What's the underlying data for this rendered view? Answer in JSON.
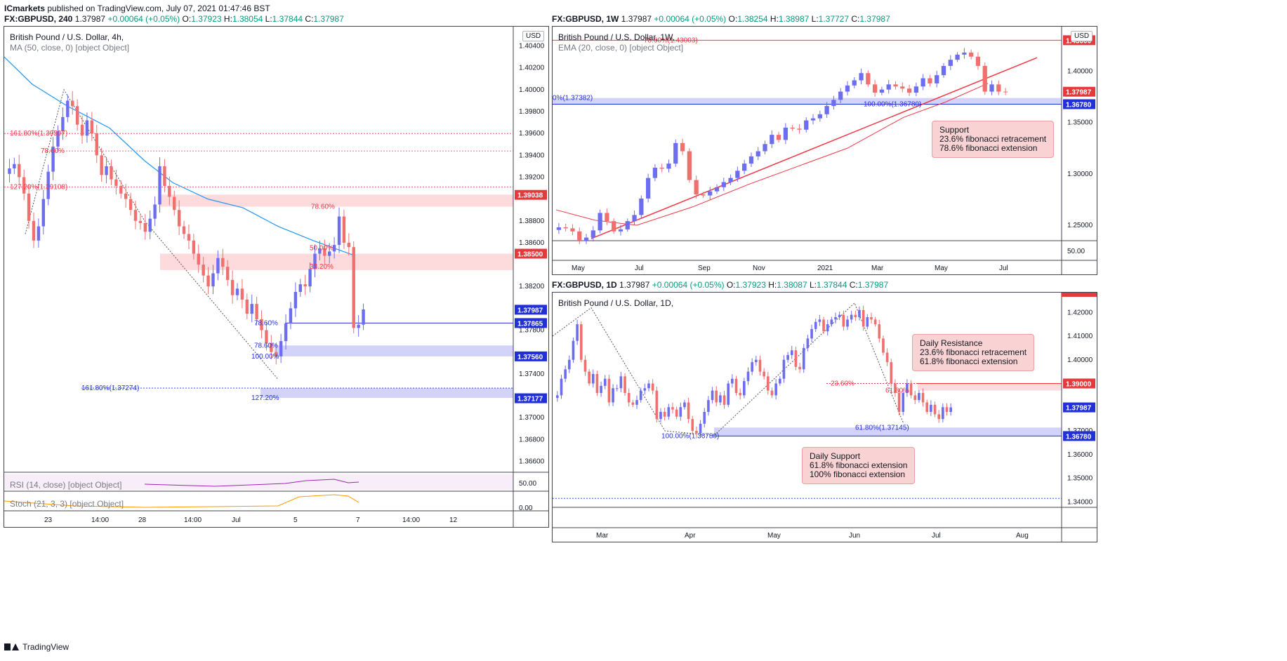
{
  "header": {
    "publisher": "ICmarkets",
    "published_text": "published on TradingView.com, July 07, 2021 01:47:46 BST"
  },
  "footer": {
    "brand": "TradingView"
  },
  "colors": {
    "up": "#6d6df0",
    "down": "#f07070",
    "ma": "#2196f3",
    "ema": "#f23645",
    "support": "#2962ff",
    "resistance": "#f23645"
  },
  "charts": [
    {
      "id": "h4",
      "symbol_line": {
        "symbol": "FX:GBPUSD, 240",
        "last": "1.37987",
        "change": "+0.00064 (+0.05%)",
        "o": "1.37923",
        "h": "1.38054",
        "l": "1.37844",
        "c": "1.37987"
      },
      "title": "British Pound / U.S. Dollar, 4h,",
      "indicator": "MA (50, close, 0) [object Object]",
      "currency_badge": "USD",
      "y_ticks": [
        "1.40400",
        "1.40200",
        "1.40000",
        "1.39800",
        "1.39600",
        "1.39400",
        "1.39200",
        "1.38800",
        "1.38600",
        "1.38200",
        "1.37800",
        "1.37400",
        "1.37000",
        "1.36800",
        "1.36600"
      ],
      "x_ticks": [
        "23",
        "14:00",
        "28",
        "14:00",
        "Jul",
        "5",
        "7",
        "14:00",
        "12"
      ],
      "price_tags": [
        {
          "label": "1.39038",
          "color": "#e33b3b"
        },
        {
          "label": "1.38500",
          "color": "#e33b3b"
        },
        {
          "label": "1.37987",
          "color": "#2230d8"
        },
        {
          "label": "1.37865",
          "color": "#2230d8"
        },
        {
          "label": "1.37560",
          "color": "#2230d8"
        },
        {
          "label": "1.37177",
          "color": "#2230d8"
        }
      ],
      "fib_labels": [
        {
          "text": "161.80%(1.39597)",
          "color": "#f23645"
        },
        {
          "text": "78.60%",
          "color": "#f23645"
        },
        {
          "text": "127.20%(1.39108)",
          "color": "#f23645"
        },
        {
          "text": "78.60%",
          "color": "#f23645"
        },
        {
          "text": "50.00%",
          "color": "#f23645"
        },
        {
          "text": "38.20%",
          "color": "#f23645"
        },
        {
          "text": "78.60%",
          "color": "#2230d8"
        },
        {
          "text": "78.60%",
          "color": "#2230d8"
        },
        {
          "text": "100.00%",
          "color": "#2230d8"
        },
        {
          "text": "161.80%(1.37274)",
          "color": "#2230d8"
        },
        {
          "text": "127.20%",
          "color": "#2230d8"
        }
      ],
      "rsi": {
        "label": "RSI (14, close) [object Object]",
        "tick": "50.00"
      },
      "stoch": {
        "label": "Stoch (21, 3, 3) [object Object]",
        "tick": "0.00"
      }
    },
    {
      "id": "w1",
      "symbol_line": {
        "symbol": "FX:GBPUSD, 1W",
        "last": "1.37987",
        "change": "+0.00064 (+0.05%)",
        "o": "1.38254",
        "h": "1.38987",
        "l": "1.37727",
        "c": "1.37987"
      },
      "title": "British Pound / U.S. Dollar, 1W,",
      "indicator": "EMA (20, close, 0) [object Object]",
      "currency_badge": "USD",
      "y_ticks": [
        "1.40000",
        "1.35000",
        "1.30000",
        "1.25000",
        "50.00"
      ],
      "x_ticks": [
        "May",
        "Jul",
        "Sep",
        "Nov",
        "2021",
        "Mar",
        "May",
        "Jul"
      ],
      "price_tags": [
        {
          "label": "1.43000",
          "color": "#e33b3b"
        },
        {
          "label": "1.37987",
          "color": "#e33b3b"
        },
        {
          "label": "1.36780",
          "color": "#2230d8"
        }
      ],
      "fib_labels": [
        {
          "text": "78.60%(1.43003)",
          "color": "#f23645"
        },
        {
          "text": "0%(1.37382)",
          "color": "#2230d8"
        },
        {
          "text": "100.00%(1.36780)",
          "color": "#2230d8"
        }
      ],
      "callout": [
        "Support",
        "23.6% fibonacci retracement",
        "78.6% fibonacci extension"
      ]
    },
    {
      "id": "d1",
      "symbol_line": {
        "symbol": "FX:GBPUSD, 1D",
        "last": "1.37987",
        "change": "+0.00064 (+0.05%)",
        "o": "1.37923",
        "h": "1.38087",
        "l": "1.37844",
        "c": "1.37987"
      },
      "title": "British Pound / U.S. Dollar, 1D,",
      "y_ticks": [
        "1.42000",
        "1.41000",
        "1.40000",
        "1.37000",
        "1.36000",
        "1.35000",
        "1.34000"
      ],
      "x_ticks": [
        "Mar",
        "Apr",
        "May",
        "Jun",
        "Jul",
        "Aug"
      ],
      "price_tags": [
        {
          "label": "1.39000",
          "color": "#e33b3b"
        },
        {
          "label": "1.37987",
          "color": "#2230d8"
        },
        {
          "label": "1.36780",
          "color": "#2230d8"
        }
      ],
      "fib_labels": [
        {
          "text": "23.60%",
          "color": "#f23645"
        },
        {
          "text": "61.80%",
          "color": "#f23645"
        },
        {
          "text": "61.80%(1.37145)",
          "color": "#2230d8"
        },
        {
          "text": "100.00%(1.36780)",
          "color": "#2230d8"
        }
      ],
      "callout_resistance": [
        "Daily Resistance",
        "23.6% fibonacci retracement",
        "61.8% fibonacci extension"
      ],
      "callout_support": [
        "Daily Support",
        "61.8% fibonacci extension",
        "100% fibonacci extension"
      ]
    }
  ],
  "chart_data": [
    {
      "type": "candlestick",
      "title": "British Pound / U.S. Dollar, 4h,",
      "ylim": [
        1.365,
        1.405
      ],
      "zones": [
        {
          "name": "resistance",
          "from": 1.3893,
          "to": 1.3904
        },
        {
          "name": "resistance",
          "from": 1.3835,
          "to": 1.385
        },
        {
          "name": "support",
          "from": 1.3756,
          "to": 1.3766
        },
        {
          "name": "support",
          "from": 1.3718,
          "to": 1.3727
        }
      ],
      "closes": [
        1.3928,
        1.3932,
        1.392,
        1.3905,
        1.388,
        1.3862,
        1.3875,
        1.39,
        1.3925,
        1.3948,
        1.3962,
        1.3975,
        1.399,
        1.3985,
        1.3968,
        1.3958,
        1.3972,
        1.396,
        1.394,
        1.3922,
        1.393,
        1.3918,
        1.3912,
        1.3905,
        1.39,
        1.389,
        1.388,
        1.3878,
        1.387,
        1.3882,
        1.3895,
        1.393,
        1.3912,
        1.3902,
        1.389,
        1.3875,
        1.3868,
        1.3862,
        1.385,
        1.384,
        1.383,
        1.382,
        1.3832,
        1.3846,
        1.3838,
        1.3826,
        1.3812,
        1.3818,
        1.3808,
        1.3795,
        1.3804,
        1.379,
        1.378,
        1.3768,
        1.376,
        1.3756,
        1.377,
        1.3786,
        1.38,
        1.3815,
        1.3822,
        1.382,
        1.3836,
        1.385,
        1.3855,
        1.3848,
        1.3852,
        1.3858,
        1.3884,
        1.386,
        1.3856,
        1.3782,
        1.3785,
        1.3799
      ]
    },
    {
      "type": "candlestick",
      "title": "British Pound / U.S. Dollar, 1W,",
      "ylim": [
        1.235,
        1.435
      ],
      "zones": [
        {
          "name": "support",
          "from": 1.3678,
          "to": 1.3738
        }
      ],
      "closes": [
        1.248,
        1.247,
        1.244,
        1.235,
        1.238,
        1.245,
        1.262,
        1.254,
        1.244,
        1.246,
        1.254,
        1.26,
        1.276,
        1.296,
        1.306,
        1.305,
        1.31,
        1.33,
        1.322,
        1.294,
        1.28,
        1.279,
        1.283,
        1.287,
        1.292,
        1.296,
        1.303,
        1.31,
        1.317,
        1.322,
        1.329,
        1.338,
        1.333,
        1.345,
        1.344,
        1.343,
        1.352,
        1.354,
        1.358,
        1.366,
        1.372,
        1.38,
        1.386,
        1.391,
        1.398,
        1.387,
        1.379,
        1.382,
        1.387,
        1.385,
        1.383,
        1.379,
        1.385,
        1.393,
        1.388,
        1.396,
        1.405,
        1.411,
        1.416,
        1.418,
        1.414,
        1.405,
        1.38,
        1.387,
        1.38,
        1.3799
      ]
    },
    {
      "type": "candlestick",
      "title": "British Pound / U.S. Dollar, 1D,",
      "ylim": [
        1.338,
        1.426
      ],
      "zones": [
        {
          "name": "resistance",
          "from": 1.387,
          "to": 1.39
        },
        {
          "name": "support",
          "from": 1.3678,
          "to": 1.3714
        }
      ],
      "closes": [
        1.385,
        1.392,
        1.396,
        1.4,
        1.408,
        1.415,
        1.4,
        1.395,
        1.39,
        1.394,
        1.386,
        1.389,
        1.392,
        1.382,
        1.388,
        1.388,
        1.393,
        1.386,
        1.382,
        1.381,
        1.383,
        1.387,
        1.388,
        1.39,
        1.387,
        1.375,
        1.378,
        1.376,
        1.38,
        1.379,
        1.376,
        1.38,
        1.382,
        1.375,
        1.37,
        1.369,
        1.373,
        1.378,
        1.383,
        1.387,
        1.382,
        1.385,
        1.381,
        1.39,
        1.392,
        1.386,
        1.385,
        1.391,
        1.395,
        1.399,
        1.4,
        1.395,
        1.393,
        1.387,
        1.385,
        1.39,
        1.392,
        1.4,
        1.402,
        1.404,
        1.397,
        1.396,
        1.405,
        1.409,
        1.413,
        1.416,
        1.417,
        1.412,
        1.415,
        1.417,
        1.418,
        1.419,
        1.414,
        1.417,
        1.419,
        1.418,
        1.421,
        1.414,
        1.418,
        1.417,
        1.415,
        1.409,
        1.403,
        1.399,
        1.39,
        1.386,
        1.378,
        1.386,
        1.39,
        1.385,
        1.383,
        1.386,
        1.382,
        1.378,
        1.381,
        1.377,
        1.375,
        1.38,
        1.378,
        1.3799
      ]
    }
  ]
}
